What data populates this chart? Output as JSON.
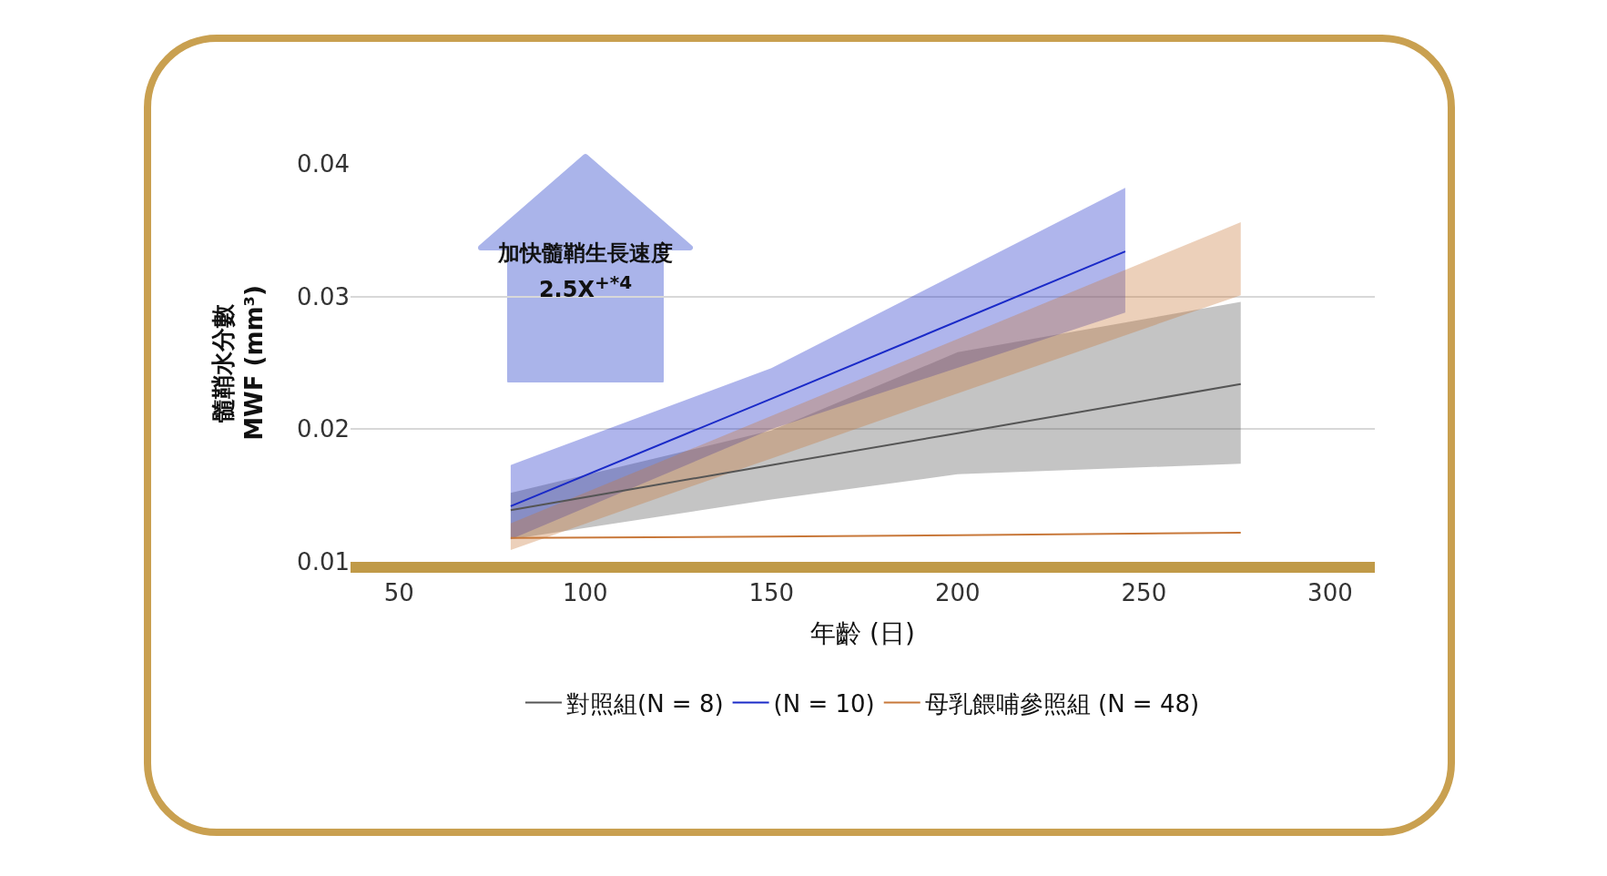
{
  "chart_data": {
    "type": "line",
    "xlabel": "年齡 (日)",
    "ylabel": "髓鞘水分數\nMWF (mm³)",
    "annotations": [
      "加快髓鞘生長速度\n2.5X$^{+*4}$"
    ],
    "xlim": [
      37,
      312
    ],
    "xticks": [
      50,
      100,
      150,
      200,
      250,
      300
    ],
    "ylim": [
      0.01,
      0.04
    ],
    "yticks": [
      0.01,
      0.02,
      0.03,
      0.04
    ],
    "grid": "y",
    "legend": "bottom",
    "marker": "none",
    "line_style": "solid",
    "series": [
      {
        "name": "對照組(N = 8)",
        "color": "#555555",
        "x": [
          80,
          150,
          200,
          276
        ],
        "values": [
          0.0139,
          0.0173,
          0.0197,
          0.0234
        ],
        "lower": [
          0.0117,
          0.0147,
          0.0166,
          0.0174
        ],
        "upper": [
          0.0152,
          0.0199,
          0.0258,
          0.0296
        ]
      },
      {
        "name": "(N = 10)",
        "color": "#1a2ac8",
        "x": [
          80,
          150,
          245
        ],
        "values": [
          0.0142,
          0.0223,
          0.0334
        ],
        "lower": [
          0.0117,
          0.02,
          0.0288
        ],
        "upper": [
          0.0173,
          0.0246,
          0.0382
        ]
      },
      {
        "name": "母乳餵哺參照組 (N = 48)",
        "color": "#c8783a",
        "x": [
          80,
          150,
          200,
          276
        ],
        "values": [
          0.0118,
          0.0119,
          0.012,
          0.0122
        ],
        "lower": [
          0.0109,
          0.0178,
          0.0227,
          0.0301
        ],
        "upper": [
          0.0129,
          0.021,
          0.0268,
          0.0356
        ]
      }
    ]
  }
}
